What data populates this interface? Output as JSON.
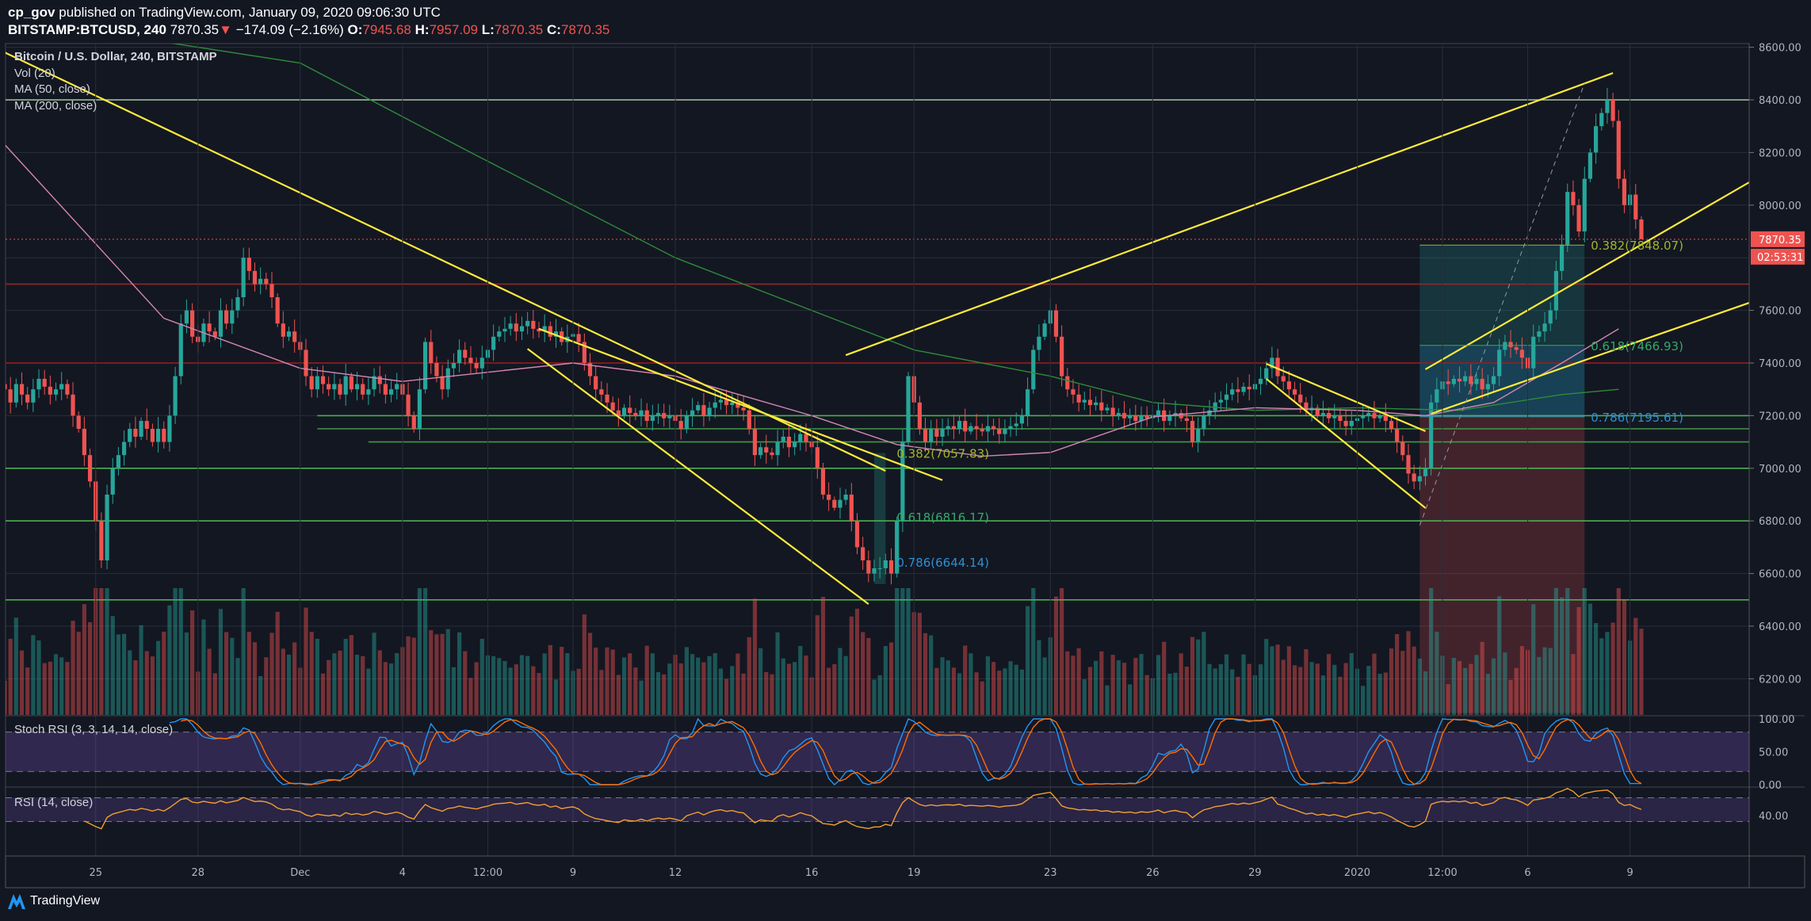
{
  "header": {
    "user": "cp_gov",
    "published": "published on TradingView.com, January 09, 2020 09:06:30 UTC",
    "symbol": "BITSTAMP:BTCUSD, 240",
    "last": "7870.35",
    "change": "−174.09 (−2.16%)",
    "o_label": "O:",
    "o": "7945.68",
    "h_label": "H:",
    "h": "7957.09",
    "l_label": "L:",
    "l": "7870.35",
    "c_label": "C:",
    "c": "7870.35"
  },
  "legend": {
    "title": "Bitcoin / U.S. Dollar, 240, BITSTAMP",
    "vol": "Vol (20)",
    "ma50": "MA (50, close)",
    "ma200": "MA (200, close)",
    "stoch": "Stoch RSI (3, 3, 14, 14, close)",
    "rsi": "RSI (14, close)"
  },
  "branding": {
    "name": "TradingView",
    "icon": "tradingview-logo-icon"
  },
  "colors": {
    "bg": "#131722",
    "grid": "#2a2e39",
    "up": "#26a69a",
    "down": "#ef5350",
    "trend": "#ffeb3b",
    "ma50": "#d486b4",
    "ma200": "#2e8b3a",
    "stoch_k": "#2196f3",
    "stoch_d": "#ff6d00",
    "rsi": "#f0a030",
    "band": "#7e57c2"
  },
  "chart_data": {
    "type": "candlestick",
    "interval": "4h",
    "start": "2019-11-22 08:00",
    "last_open": 7945.68,
    "last_high": 7957.09,
    "last_low": 7870.35,
    "closes": [
      7300,
      7250,
      7320,
      7280,
      7250,
      7300,
      7340,
      7310,
      7280,
      7300,
      7320,
      7280,
      7200,
      7150,
      7050,
      6950,
      6800,
      6650,
      6900,
      7000,
      7050,
      7100,
      7150,
      7120,
      7180,
      7150,
      7100,
      7150,
      7100,
      7200,
      7350,
      7550,
      7600,
      7500,
      7480,
      7550,
      7520,
      7500,
      7600,
      7550,
      7600,
      7650,
      7800,
      7750,
      7700,
      7720,
      7700,
      7650,
      7550,
      7500,
      7520,
      7480,
      7450,
      7350,
      7300,
      7350,
      7320,
      7300,
      7320,
      7280,
      7350,
      7300,
      7320,
      7280,
      7300,
      7350,
      7320,
      7280,
      7300,
      7320,
      7280,
      7200,
      7150,
      7300,
      7480,
      7400,
      7350,
      7300,
      7380,
      7400,
      7450,
      7420,
      7400,
      7380,
      7420,
      7450,
      7500,
      7520,
      7530,
      7550,
      7520,
      7540,
      7560,
      7530,
      7520,
      7540,
      7500,
      7520,
      7480,
      7500,
      7510,
      7480,
      7400,
      7350,
      7300,
      7280,
      7250,
      7220,
      7200,
      7230,
      7210,
      7200,
      7220,
      7180,
      7200,
      7210,
      7190,
      7200,
      7180,
      7150,
      7200,
      7220,
      7240,
      7200,
      7230,
      7250,
      7260,
      7240,
      7250,
      7230,
      7220,
      7150,
      7050,
      7080,
      7060,
      7050,
      7100,
      7120,
      7080,
      7100,
      7130,
      7100,
      7080,
      7000,
      6900,
      6880,
      6850,
      6880,
      6900,
      6800,
      6700,
      6650,
      6600,
      6620,
      6620,
      6650,
      6600,
      6800,
      7100,
      7350,
      7250,
      7150,
      7100,
      7150,
      7120,
      7150,
      7160,
      7150,
      7180,
      7140,
      7160,
      7150,
      7140,
      7160,
      7150,
      7130,
      7150,
      7160,
      7170,
      7200,
      7300,
      7450,
      7500,
      7550,
      7600,
      7500,
      7350,
      7300,
      7280,
      7250,
      7260,
      7240,
      7250,
      7220,
      7230,
      7200,
      7210,
      7190,
      7200,
      7180,
      7200,
      7190,
      7200,
      7220,
      7180,
      7200,
      7210,
      7190,
      7180,
      7100,
      7150,
      7200,
      7220,
      7250,
      7260,
      7280,
      7300,
      7290,
      7310,
      7300,
      7320,
      7340,
      7380,
      7420,
      7350,
      7330,
      7300,
      7280,
      7250,
      7220,
      7230,
      7200,
      7210,
      7190,
      7200,
      7180,
      7160,
      7180,
      7190,
      7200,
      7210,
      7190,
      7200,
      7180,
      7150,
      7100,
      7050,
      6980,
      6950,
      6970,
      7000,
      7250,
      7300,
      7330,
      7320,
      7340,
      7330,
      7350,
      7320,
      7340,
      7300,
      7320,
      7350,
      7450,
      7480,
      7460,
      7450,
      7420,
      7380,
      7500,
      7520,
      7550,
      7600,
      7750,
      7850,
      8050,
      8000,
      7900,
      8100,
      8200,
      8300,
      8350,
      8400,
      8320,
      8100,
      8000,
      8040,
      7945.68,
      7870.35
    ],
    "ma50": [
      [
        "2019-11-22 08:00",
        8230
      ],
      [
        "2019-11-27 00:00",
        7570
      ],
      [
        "2019-12-01 00:00",
        7380
      ],
      [
        "2019-12-04 00:00",
        7330
      ],
      [
        "2019-12-09 00:00",
        7400
      ],
      [
        "2019-12-12 00:00",
        7350
      ],
      [
        "2019-12-16 00:00",
        7200
      ],
      [
        "2019-12-18 12:00",
        7090
      ],
      [
        "2019-12-21 00:00",
        7046
      ],
      [
        "2019-12-23 00:00",
        7060
      ],
      [
        "2019-12-26 00:00",
        7195
      ],
      [
        "2019-12-29 00:00",
        7230
      ],
      [
        "2020-01-01 00:00",
        7220
      ],
      [
        "2020-01-03 00:00",
        7200
      ],
      [
        "2020-01-05 00:00",
        7250
      ],
      [
        "2020-01-07 00:00",
        7400
      ],
      [
        "2020-01-08 16:00",
        7530
      ]
    ],
    "ma200": [
      [
        "2019-11-22 08:00",
        8760
      ],
      [
        "2019-11-25 00:00",
        8660
      ],
      [
        "2019-12-01 00:00",
        8540
      ],
      [
        "2019-12-06 00:00",
        8200
      ],
      [
        "2019-12-12 00:00",
        7800
      ],
      [
        "2019-12-16 00:00",
        7600
      ],
      [
        "2019-12-19 00:00",
        7450
      ],
      [
        "2019-12-23 00:00",
        7350
      ],
      [
        "2019-12-26 00:00",
        7250
      ],
      [
        "2019-12-29 00:00",
        7220
      ],
      [
        "2020-01-01 00:00",
        7230
      ],
      [
        "2020-01-04 00:00",
        7220
      ],
      [
        "2020-01-07 00:00",
        7280
      ],
      [
        "2020-01-08 16:00",
        7300
      ]
    ],
    "price_ticks": [
      "8600.00",
      "8400.00",
      "8200.00",
      "8000.00",
      "7600.00",
      "7400.00",
      "7200.00",
      "7000.00",
      "6800.00",
      "6600.00",
      "6400.00",
      "6200.00"
    ],
    "current_price_label": "7870.35",
    "countdown": "02:53:31",
    "stoch_ticks": [
      "100.00",
      "50.00",
      "0.00"
    ],
    "rsi_ticks": [
      "40.00"
    ],
    "x_ticks": [
      [
        "2019-11-25 00:00",
        "25"
      ],
      [
        "2019-11-28 00:00",
        "28"
      ],
      [
        "2019-12-01 00:00",
        "Dec"
      ],
      [
        "2019-12-04 00:00",
        "4"
      ],
      [
        "2019-12-06 12:00",
        "12:00"
      ],
      [
        "2019-12-09 00:00",
        "9"
      ],
      [
        "2019-12-12 00:00",
        "12"
      ],
      [
        "2019-12-16 00:00",
        "16"
      ],
      [
        "2019-12-19 00:00",
        "19"
      ],
      [
        "2019-12-23 00:00",
        "23"
      ],
      [
        "2019-12-26 00:00",
        "26"
      ],
      [
        "2019-12-29 00:00",
        "29"
      ],
      [
        "2020-01-01 00:00",
        "2020"
      ],
      [
        "2020-01-03 12:00",
        "12:00"
      ],
      [
        "2020-01-06 00:00",
        "6"
      ],
      [
        "2020-01-09 00:00",
        "9"
      ]
    ],
    "levels": [
      {
        "price": 8400,
        "color": "#a5c8a0"
      },
      {
        "price": 7700,
        "color": "#8e2a2a"
      },
      {
        "price": 7400,
        "color": "#a11c1c"
      },
      {
        "price": 7200,
        "color": "#4caf50",
        "from": "2019-12-01 12:00"
      },
      {
        "price": 7150,
        "color": "#3f9a44",
        "from": "2019-12-01 12:00"
      },
      {
        "price": 7100,
        "color": "#3f9a44",
        "from": "2019-12-03 00:00"
      },
      {
        "price": 7000,
        "color": "#4caf50"
      },
      {
        "price": 6800,
        "color": "#4caf50"
      },
      {
        "price": 6500,
        "color": "#4caf50"
      }
    ],
    "trendlines": [
      [
        [
          "2019-11-22 08:00",
          8580
        ],
        [
          "2019-12-18 04:00",
          6990
        ]
      ],
      [
        [
          "2019-12-08 00:00",
          7530
        ],
        [
          "2019-12-19 20:00",
          6955
        ]
      ],
      [
        [
          "2019-12-07 16:00",
          7454
        ],
        [
          "2019-12-17 16:00",
          6484
        ]
      ],
      [
        [
          "2019-12-17 00:00",
          7430
        ],
        [
          "2020-01-08 12:00",
          8502
        ]
      ],
      [
        [
          "2019-12-29 08:00",
          7397
        ],
        [
          "2020-01-03 00:00",
          7141
        ]
      ],
      [
        [
          "2019-12-29 08:00",
          7340
        ],
        [
          "2020-01-03 00:00",
          6849
        ]
      ],
      [
        [
          "2020-01-03 00:00",
          7376
        ],
        [
          "2020-01-12 12:00",
          8087
        ]
      ],
      [
        [
          "2020-01-03 04:00",
          7207
        ],
        [
          "2020-01-12 12:00",
          7629
        ]
      ]
    ],
    "projection": [
      [
        "2020-01-02 20:00",
        6783
      ],
      [
        "2020-01-07 16:00",
        8463
      ]
    ],
    "position": {
      "from": "2020-01-02 20:00",
      "to": "2020-01-07 16:00",
      "target": 7848.07,
      "entry": 7200,
      "stop": 6070
    },
    "fib_left": {
      "from": "2019-12-17 20:00",
      "to": "2019-12-18 04:00",
      "levels": [
        {
          "ratio": "0.382",
          "price": 7057.83,
          "label": "0.382(7057.83)",
          "color": "#a4b52e"
        },
        {
          "ratio": "0.618",
          "price": 6816.17,
          "label": "0.618(6816.17)",
          "color": "#36a86a"
        },
        {
          "ratio": "0.786",
          "price": 6644.14,
          "label": "0.786(6644.14)",
          "color": "#2f8fd0"
        }
      ]
    },
    "fib_right": {
      "levels": [
        {
          "ratio": "0.382",
          "price": 7848.07,
          "label": "0.382(7848.07)",
          "color": "#a4b52e"
        },
        {
          "ratio": "0.618",
          "price": 7466.93,
          "label": "0.618(7466.93)",
          "color": "#36a86a"
        },
        {
          "ratio": "0.786",
          "price": 7195.61,
          "label": "0.786(7195.61)",
          "color": "#2f8fd0"
        }
      ]
    },
    "stoch_bands": [
      80,
      20
    ],
    "rsi_bands": [
      70,
      30
    ]
  }
}
